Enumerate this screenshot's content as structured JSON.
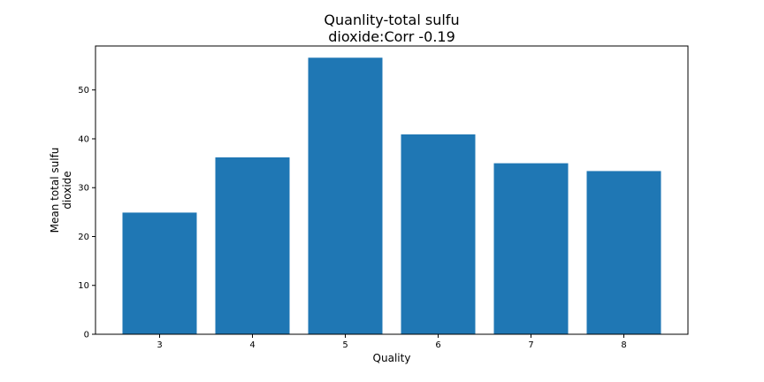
{
  "chart_data": {
    "type": "bar",
    "title_lines": [
      "Quanlity-total sulfu",
      "dioxide:Corr -0.19"
    ],
    "xlabel": "Quality",
    "ylabel_lines": [
      "Mean total sulfu",
      "dioxide"
    ],
    "categories": [
      "3",
      "4",
      "5",
      "6",
      "7",
      "8"
    ],
    "values": [
      24.9,
      36.2,
      56.6,
      40.9,
      35.0,
      33.4
    ],
    "ylim": [
      0,
      59
    ],
    "yticks": [
      0,
      10,
      20,
      30,
      40,
      50
    ],
    "bar_color": "#1f77b4",
    "grid": false,
    "legend": "none"
  }
}
